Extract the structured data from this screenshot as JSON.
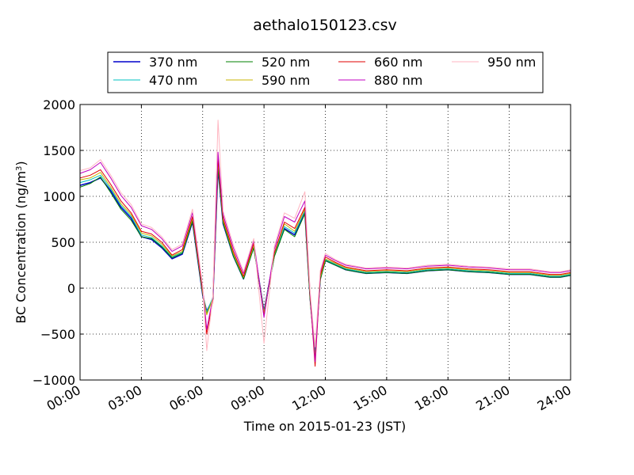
{
  "chart_data": {
    "type": "line",
    "title": "aethalo150123.csv",
    "xlabel": "Time on 2015-01-23 (JST)",
    "ylabel_main": "BC Concentration (ng/m",
    "ylabel_sup": "3",
    "ylabel_close": ")",
    "xlim": [
      0,
      24
    ],
    "ylim": [
      -1000,
      2000
    ],
    "grid": true,
    "legend_placement": "top-center",
    "x_ticks": [
      {
        "value": 0,
        "label": "00:00"
      },
      {
        "value": 3,
        "label": "03:00"
      },
      {
        "value": 6,
        "label": "06:00"
      },
      {
        "value": 9,
        "label": "09:00"
      },
      {
        "value": 12,
        "label": "12:00"
      },
      {
        "value": 15,
        "label": "15:00"
      },
      {
        "value": 18,
        "label": "18:00"
      },
      {
        "value": 21,
        "label": "21:00"
      },
      {
        "value": 24,
        "label": "24:00"
      }
    ],
    "y_ticks": [
      {
        "value": 2000,
        "label": "2000"
      },
      {
        "value": 1500,
        "label": "1500"
      },
      {
        "value": 1000,
        "label": "1000"
      },
      {
        "value": 500,
        "label": "500"
      },
      {
        "value": 0,
        "label": "0"
      },
      {
        "value": -500,
        "label": "−500"
      },
      {
        "value": -1000,
        "label": "−1000"
      }
    ],
    "x": [
      0.0,
      0.5,
      1.0,
      1.5,
      2.0,
      2.5,
      3.0,
      3.5,
      4.0,
      4.5,
      5.0,
      5.5,
      6.0,
      6.2,
      6.5,
      6.75,
      7.0,
      7.5,
      8.0,
      8.5,
      9.0,
      9.5,
      10.0,
      10.5,
      11.0,
      11.25,
      11.5,
      11.75,
      12.0,
      12.5,
      13.0,
      13.5,
      14.0,
      15.0,
      16.0,
      17.0,
      18.0,
      19.0,
      20.0,
      21.0,
      22.0,
      23.0,
      23.5,
      24.0
    ],
    "series": [
      {
        "name": "370 nm",
        "color": "#0000cc",
        "width": 1.5,
        "values": [
          1120,
          1150,
          1200,
          1060,
          880,
          760,
          560,
          530,
          440,
          320,
          370,
          720,
          -80,
          -250,
          -120,
          1300,
          700,
          350,
          100,
          450,
          -250,
          350,
          650,
          580,
          820,
          -100,
          -700,
          100,
          300,
          250,
          200,
          180,
          160,
          170,
          160,
          190,
          200,
          180,
          170,
          150,
          150,
          120,
          120,
          140
        ]
      },
      {
        "name": "470 nm",
        "color": "#00c0c0",
        "width": 1.0,
        "values": [
          1150,
          1180,
          1230,
          1080,
          900,
          780,
          580,
          550,
          460,
          340,
          390,
          740,
          -60,
          -260,
          -100,
          1340,
          720,
          360,
          110,
          460,
          -260,
          360,
          670,
          600,
          840,
          -90,
          -720,
          110,
          310,
          260,
          210,
          190,
          170,
          180,
          170,
          200,
          210,
          190,
          180,
          160,
          160,
          130,
          130,
          150
        ]
      },
      {
        "name": "520 nm",
        "color": "#008000",
        "width": 1.0,
        "values": [
          1100,
          1140,
          1210,
          1040,
          860,
          740,
          560,
          540,
          450,
          330,
          380,
          730,
          -70,
          -280,
          -120,
          1320,
          710,
          350,
          100,
          440,
          -280,
          340,
          640,
          560,
          810,
          -120,
          -740,
          90,
          300,
          250,
          200,
          180,
          160,
          170,
          160,
          190,
          200,
          180,
          170,
          150,
          150,
          120,
          120,
          140
        ]
      },
      {
        "name": "590 nm",
        "color": "#c8b400",
        "width": 1.0,
        "values": [
          1180,
          1200,
          1260,
          1100,
          920,
          800,
          600,
          570,
          480,
          350,
          400,
          760,
          -50,
          -290,
          -110,
          1380,
          740,
          380,
          120,
          470,
          -270,
          370,
          700,
          620,
          860,
          -80,
          -760,
          120,
          320,
          270,
          220,
          200,
          180,
          190,
          180,
          210,
          220,
          200,
          190,
          170,
          170,
          140,
          140,
          160
        ]
      },
      {
        "name": "660 nm",
        "color": "#e00000",
        "width": 1.0,
        "values": [
          1200,
          1230,
          1290,
          1130,
          950,
          820,
          620,
          590,
          500,
          360,
          420,
          780,
          -30,
          -500,
          -130,
          1420,
          760,
          400,
          130,
          490,
          -300,
          380,
          720,
          650,
          880,
          -60,
          -850,
          140,
          340,
          280,
          230,
          210,
          190,
          200,
          190,
          220,
          230,
          210,
          200,
          180,
          180,
          150,
          150,
          170
        ]
      },
      {
        "name": "880 nm",
        "color": "#c000c0",
        "width": 1.0,
        "values": [
          1250,
          1290,
          1370,
          1200,
          1010,
          880,
          680,
          640,
          540,
          400,
          460,
          820,
          0,
          -450,
          -100,
          1480,
          800,
          440,
          160,
          520,
          -320,
          420,
          780,
          720,
          950,
          -40,
          -800,
          170,
          360,
          300,
          250,
          230,
          210,
          220,
          210,
          240,
          250,
          230,
          220,
          200,
          200,
          170,
          170,
          190
        ]
      },
      {
        "name": "950 nm",
        "color": "#ffb6c1",
        "width": 1.0,
        "values": [
          1280,
          1310,
          1400,
          1230,
          1040,
          910,
          700,
          660,
          560,
          420,
          480,
          860,
          20,
          -680,
          -80,
          1830,
          840,
          470,
          180,
          540,
          -600,
          450,
          820,
          760,
          1050,
          -20,
          -640,
          190,
          380,
          310,
          260,
          240,
          220,
          230,
          220,
          250,
          260,
          240,
          230,
          210,
          210,
          180,
          180,
          200
        ]
      }
    ]
  }
}
